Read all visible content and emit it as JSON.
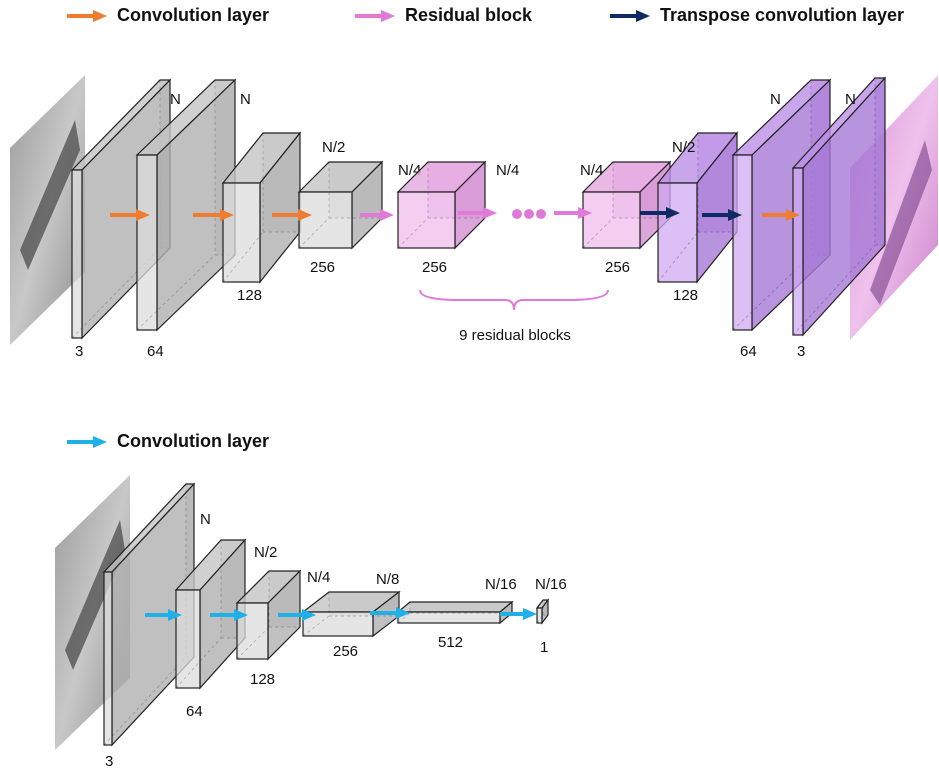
{
  "generator": {
    "legend": [
      "Convolution layer",
      "Residual block",
      "Transpose convolution layer"
    ],
    "blocks": [
      {
        "size": "N",
        "channels": "3"
      },
      {
        "size": "N",
        "channels": "64"
      },
      {
        "size": "N/2",
        "channels": "128"
      },
      {
        "size": "N/4",
        "channels": "256"
      },
      {
        "size": "N/4",
        "channels": "256"
      },
      {
        "size": "N/4",
        "channels": "256"
      },
      {
        "size": "N/2",
        "channels": "128"
      },
      {
        "size": "N",
        "channels": "64"
      },
      {
        "size": "N",
        "channels": "3"
      }
    ],
    "residual_label": "9 residual blocks"
  },
  "discriminator": {
    "legend": [
      "Convolution layer"
    ],
    "blocks": [
      {
        "size": "N",
        "channels": "3"
      },
      {
        "size": "N/2",
        "channels": "64"
      },
      {
        "size": "N/4",
        "channels": "128"
      },
      {
        "size": "N/8",
        "channels": "256"
      },
      {
        "size": "N/16",
        "channels": "512"
      },
      {
        "size": "N/16",
        "channels": "1"
      }
    ]
  }
}
